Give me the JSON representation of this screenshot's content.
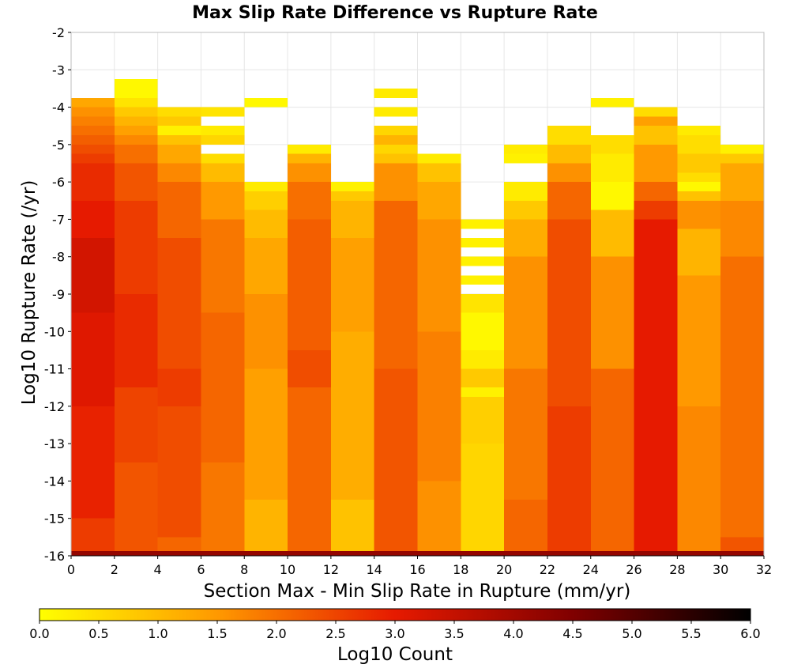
{
  "chart_data": {
    "type": "heatmap",
    "title": "Max Slip Rate Difference vs Rupture Rate",
    "xlabel": "Section Max - Min Slip Rate in Rupture (mm/yr)",
    "ylabel": "Log10 Rupture Rate (/yr)",
    "xlim": [
      0,
      32
    ],
    "ylim": [
      -16,
      -2
    ],
    "x_ticks": [
      "0",
      "2",
      "4",
      "6",
      "8",
      "10",
      "12",
      "14",
      "16",
      "18",
      "20",
      "22",
      "24",
      "26",
      "28",
      "30",
      "32"
    ],
    "y_ticks": [
      "-2",
      "-3",
      "-4",
      "-5",
      "-6",
      "-7",
      "-8",
      "-9",
      "-10",
      "-11",
      "-12",
      "-13",
      "-14",
      "-15",
      "-16"
    ],
    "x_bin_width": 2,
    "y_bin_height": 0.25,
    "grid": true,
    "colorbar": {
      "label": "Log10 Count",
      "min": 0,
      "max": 6,
      "ticks": [
        "0.0",
        "0.5",
        "1.0",
        "1.5",
        "2.0",
        "2.5",
        "3.0",
        "3.5",
        "4.0",
        "4.5",
        "5.0",
        "5.5",
        "6.0"
      ],
      "stops": [
        {
          "value": 0.0,
          "color": "#ffff00"
        },
        {
          "value": 1.5,
          "color": "#ff9900"
        },
        {
          "value": 3.0,
          "color": "#e61a00"
        },
        {
          "value": 4.5,
          "color": "#800000"
        },
        {
          "value": 6.0,
          "color": "#000000"
        }
      ]
    },
    "bottom_row": {
      "y_range": [
        -16,
        -15.875
      ],
      "log10_count": 4.2
    },
    "columns": [
      {
        "x_range": [
          0,
          2
        ],
        "segments": [
          {
            "y_top": -3.75,
            "y_bottom": -4.0,
            "log10_count": 1.3
          },
          {
            "y_top": -4.0,
            "y_bottom": -4.25,
            "log10_count": 1.6
          },
          {
            "y_top": -4.25,
            "y_bottom": -4.5,
            "log10_count": 1.8
          },
          {
            "y_top": -4.5,
            "y_bottom": -4.75,
            "log10_count": 2.0
          },
          {
            "y_top": -4.75,
            "y_bottom": -5.0,
            "log10_count": 2.2
          },
          {
            "y_top": -5.0,
            "y_bottom": -5.25,
            "log10_count": 2.4
          },
          {
            "y_top": -5.25,
            "y_bottom": -5.5,
            "log10_count": 2.6
          },
          {
            "y_top": -5.5,
            "y_bottom": -6.5,
            "log10_count": 2.8
          },
          {
            "y_top": -6.5,
            "y_bottom": -7.5,
            "log10_count": 3.0
          },
          {
            "y_top": -7.5,
            "y_bottom": -9.5,
            "log10_count": 3.3
          },
          {
            "y_top": -9.5,
            "y_bottom": -12.0,
            "log10_count": 3.1
          },
          {
            "y_top": -12.0,
            "y_bottom": -15.0,
            "log10_count": 2.9
          },
          {
            "y_top": -15.0,
            "y_bottom": -15.875,
            "log10_count": 2.6
          }
        ]
      },
      {
        "x_range": [
          2,
          4
        ],
        "segments": [
          {
            "y_top": -3.25,
            "y_bottom": -3.75,
            "log10_count": 0.1
          },
          {
            "y_top": -3.75,
            "y_bottom": -4.0,
            "log10_count": 0.4
          },
          {
            "y_top": -4.0,
            "y_bottom": -4.25,
            "log10_count": 0.8
          },
          {
            "y_top": -4.25,
            "y_bottom": -4.5,
            "log10_count": 1.1
          },
          {
            "y_top": -4.5,
            "y_bottom": -4.75,
            "log10_count": 1.4
          },
          {
            "y_top": -4.75,
            "y_bottom": -5.0,
            "log10_count": 1.7
          },
          {
            "y_top": -5.0,
            "y_bottom": -5.5,
            "log10_count": 2.0
          },
          {
            "y_top": -5.5,
            "y_bottom": -6.5,
            "log10_count": 2.3
          },
          {
            "y_top": -6.5,
            "y_bottom": -9.0,
            "log10_count": 2.6
          },
          {
            "y_top": -9.0,
            "y_bottom": -11.5,
            "log10_count": 2.8
          },
          {
            "y_top": -11.5,
            "y_bottom": -13.5,
            "log10_count": 2.5
          },
          {
            "y_top": -13.5,
            "y_bottom": -15.875,
            "log10_count": 2.3
          }
        ]
      },
      {
        "x_range": [
          4,
          6
        ],
        "segments": [
          {
            "y_top": -4.0,
            "y_bottom": -4.25,
            "log10_count": 0.5
          },
          {
            "y_top": -4.25,
            "y_bottom": -4.5,
            "log10_count": 0.8
          },
          {
            "y_top": -4.5,
            "y_bottom": -4.75,
            "log10_count": 0.2
          },
          {
            "y_top": -4.75,
            "y_bottom": -5.0,
            "log10_count": 0.9
          },
          {
            "y_top": -5.0,
            "y_bottom": -5.5,
            "log10_count": 1.3
          },
          {
            "y_top": -5.5,
            "y_bottom": -6.0,
            "log10_count": 1.7
          },
          {
            "y_top": -6.0,
            "y_bottom": -7.5,
            "log10_count": 2.1
          },
          {
            "y_top": -7.5,
            "y_bottom": -11.0,
            "log10_count": 2.4
          },
          {
            "y_top": -11.0,
            "y_bottom": -12.0,
            "log10_count": 2.6
          },
          {
            "y_top": -12.0,
            "y_bottom": -15.5,
            "log10_count": 2.4
          },
          {
            "y_top": -15.5,
            "y_bottom": -15.875,
            "log10_count": 2.1
          }
        ]
      },
      {
        "x_range": [
          6,
          8
        ],
        "segments": [
          {
            "y_top": -4.0,
            "y_bottom": -4.25,
            "log10_count": 0.4
          },
          {
            "y_top": -4.5,
            "y_bottom": -4.75,
            "log10_count": 0.3
          },
          {
            "y_top": -4.75,
            "y_bottom": -5.0,
            "log10_count": 0.6
          },
          {
            "y_top": -5.25,
            "y_bottom": -5.5,
            "log10_count": 0.5
          },
          {
            "y_top": -5.5,
            "y_bottom": -6.0,
            "log10_count": 1.0
          },
          {
            "y_top": -6.0,
            "y_bottom": -7.0,
            "log10_count": 1.5
          },
          {
            "y_top": -7.0,
            "y_bottom": -9.5,
            "log10_count": 1.9
          },
          {
            "y_top": -9.5,
            "y_bottom": -13.5,
            "log10_count": 2.1
          },
          {
            "y_top": -13.5,
            "y_bottom": -15.875,
            "log10_count": 1.9
          }
        ]
      },
      {
        "x_range": [
          8,
          10
        ],
        "segments": [
          {
            "y_top": -3.75,
            "y_bottom": -4.0,
            "log10_count": 0.1
          },
          {
            "y_top": -6.0,
            "y_bottom": -6.25,
            "log10_count": 0.3
          },
          {
            "y_top": -6.25,
            "y_bottom": -6.75,
            "log10_count": 0.7
          },
          {
            "y_top": -6.75,
            "y_bottom": -7.5,
            "log10_count": 1.0
          },
          {
            "y_top": -7.5,
            "y_bottom": -9.0,
            "log10_count": 1.3
          },
          {
            "y_top": -9.0,
            "y_bottom": -11.0,
            "log10_count": 1.6
          },
          {
            "y_top": -11.0,
            "y_bottom": -14.5,
            "log10_count": 1.4
          },
          {
            "y_top": -14.5,
            "y_bottom": -15.875,
            "log10_count": 1.1
          }
        ]
      },
      {
        "x_range": [
          10,
          12
        ],
        "segments": [
          {
            "y_top": -5.0,
            "y_bottom": -5.25,
            "log10_count": 0.3
          },
          {
            "y_top": -5.25,
            "y_bottom": -5.5,
            "log10_count": 1.1
          },
          {
            "y_top": -5.5,
            "y_bottom": -6.0,
            "log10_count": 1.6
          },
          {
            "y_top": -6.0,
            "y_bottom": -7.0,
            "log10_count": 2.0
          },
          {
            "y_top": -7.0,
            "y_bottom": -10.5,
            "log10_count": 2.2
          },
          {
            "y_top": -10.5,
            "y_bottom": -11.5,
            "log10_count": 2.4
          },
          {
            "y_top": -11.5,
            "y_bottom": -15.875,
            "log10_count": 2.1
          }
        ]
      },
      {
        "x_range": [
          12,
          14
        ],
        "segments": [
          {
            "y_top": -6.0,
            "y_bottom": -6.25,
            "log10_count": 0.2
          },
          {
            "y_top": -6.25,
            "y_bottom": -6.5,
            "log10_count": 0.8
          },
          {
            "y_top": -6.5,
            "y_bottom": -7.5,
            "log10_count": 1.1
          },
          {
            "y_top": -7.5,
            "y_bottom": -10.0,
            "log10_count": 1.4
          },
          {
            "y_top": -10.0,
            "y_bottom": -14.5,
            "log10_count": 1.2
          },
          {
            "y_top": -14.5,
            "y_bottom": -15.875,
            "log10_count": 0.9
          }
        ]
      },
      {
        "x_range": [
          14,
          16
        ],
        "segments": [
          {
            "y_top": -3.5,
            "y_bottom": -3.75,
            "log10_count": 0.3
          },
          {
            "y_top": -4.0,
            "y_bottom": -4.25,
            "log10_count": 0.3
          },
          {
            "y_top": -4.5,
            "y_bottom": -4.75,
            "log10_count": 0.6
          },
          {
            "y_top": -4.75,
            "y_bottom": -5.0,
            "log10_count": 1.1
          },
          {
            "y_top": -5.0,
            "y_bottom": -5.25,
            "log10_count": 0.6
          },
          {
            "y_top": -5.25,
            "y_bottom": -5.5,
            "log10_count": 0.9
          },
          {
            "y_top": -5.5,
            "y_bottom": -6.5,
            "log10_count": 1.6
          },
          {
            "y_top": -6.5,
            "y_bottom": -11.0,
            "log10_count": 2.1
          },
          {
            "y_top": -11.0,
            "y_bottom": -15.875,
            "log10_count": 2.3
          }
        ]
      },
      {
        "x_range": [
          16,
          18
        ],
        "segments": [
          {
            "y_top": -5.25,
            "y_bottom": -5.5,
            "log10_count": 0.3
          },
          {
            "y_top": -5.5,
            "y_bottom": -6.0,
            "log10_count": 0.9
          },
          {
            "y_top": -6.0,
            "y_bottom": -7.0,
            "log10_count": 1.3
          },
          {
            "y_top": -7.0,
            "y_bottom": -10.0,
            "log10_count": 1.6
          },
          {
            "y_top": -10.0,
            "y_bottom": -14.0,
            "log10_count": 1.8
          },
          {
            "y_top": -14.0,
            "y_bottom": -15.875,
            "log10_count": 1.6
          }
        ]
      },
      {
        "x_range": [
          18,
          20
        ],
        "segments": [
          {
            "y_top": -7.0,
            "y_bottom": -7.25,
            "log10_count": 0.2
          },
          {
            "y_top": -7.5,
            "y_bottom": -7.75,
            "log10_count": 0.2
          },
          {
            "y_top": -8.0,
            "y_bottom": -8.25,
            "log10_count": 0.2
          },
          {
            "y_top": -8.5,
            "y_bottom": -8.75,
            "log10_count": 0.2
          },
          {
            "y_top": -9.0,
            "y_bottom": -9.5,
            "log10_count": 0.4
          },
          {
            "y_top": -9.5,
            "y_bottom": -10.5,
            "log10_count": 0.1
          },
          {
            "y_top": -10.5,
            "y_bottom": -11.0,
            "log10_count": 0.3
          },
          {
            "y_top": -11.0,
            "y_bottom": -11.5,
            "log10_count": 0.8
          },
          {
            "y_top": -11.5,
            "y_bottom": -11.75,
            "log10_count": 0.2
          },
          {
            "y_top": -11.75,
            "y_bottom": -13.0,
            "log10_count": 0.7
          },
          {
            "y_top": -13.0,
            "y_bottom": -15.875,
            "log10_count": 0.6
          }
        ]
      },
      {
        "x_range": [
          20,
          22
        ],
        "segments": [
          {
            "y_top": -5.0,
            "y_bottom": -5.25,
            "log10_count": 0.3
          },
          {
            "y_top": -5.25,
            "y_bottom": -5.5,
            "log10_count": 0.2
          },
          {
            "y_top": -6.0,
            "y_bottom": -6.5,
            "log10_count": 0.3
          },
          {
            "y_top": -6.5,
            "y_bottom": -7.0,
            "log10_count": 0.8
          },
          {
            "y_top": -7.0,
            "y_bottom": -8.0,
            "log10_count": 1.2
          },
          {
            "y_top": -8.0,
            "y_bottom": -11.0,
            "log10_count": 1.6
          },
          {
            "y_top": -11.0,
            "y_bottom": -14.5,
            "log10_count": 1.9
          },
          {
            "y_top": -14.5,
            "y_bottom": -15.875,
            "log10_count": 2.1
          }
        ]
      },
      {
        "x_range": [
          22,
          24
        ],
        "segments": [
          {
            "y_top": -4.5,
            "y_bottom": -5.0,
            "log10_count": 0.5
          },
          {
            "y_top": -5.0,
            "y_bottom": -5.5,
            "log10_count": 1.0
          },
          {
            "y_top": -5.5,
            "y_bottom": -6.0,
            "log10_count": 1.6
          },
          {
            "y_top": -6.0,
            "y_bottom": -7.0,
            "log10_count": 2.1
          },
          {
            "y_top": -7.0,
            "y_bottom": -12.0,
            "log10_count": 2.4
          },
          {
            "y_top": -12.0,
            "y_bottom": -15.875,
            "log10_count": 2.6
          }
        ]
      },
      {
        "x_range": [
          24,
          26
        ],
        "segments": [
          {
            "y_top": -3.75,
            "y_bottom": -4.0,
            "log10_count": 0.2
          },
          {
            "y_top": -4.75,
            "y_bottom": -5.25,
            "log10_count": 0.5
          },
          {
            "y_top": -5.25,
            "y_bottom": -6.0,
            "log10_count": 0.3
          },
          {
            "y_top": -6.0,
            "y_bottom": -6.75,
            "log10_count": 0.1
          },
          {
            "y_top": -6.75,
            "y_bottom": -8.0,
            "log10_count": 1.0
          },
          {
            "y_top": -8.0,
            "y_bottom": -11.0,
            "log10_count": 1.6
          },
          {
            "y_top": -11.0,
            "y_bottom": -15.875,
            "log10_count": 2.1
          }
        ]
      },
      {
        "x_range": [
          26,
          28
        ],
        "segments": [
          {
            "y_top": -4.0,
            "y_bottom": -4.25,
            "log10_count": 0.5
          },
          {
            "y_top": -4.25,
            "y_bottom": -4.5,
            "log10_count": 1.4
          },
          {
            "y_top": -4.5,
            "y_bottom": -5.0,
            "log10_count": 0.9
          },
          {
            "y_top": -5.0,
            "y_bottom": -6.0,
            "log10_count": 1.5
          },
          {
            "y_top": -6.0,
            "y_bottom": -6.5,
            "log10_count": 2.1
          },
          {
            "y_top": -6.5,
            "y_bottom": -7.0,
            "log10_count": 2.6
          },
          {
            "y_top": -7.0,
            "y_bottom": -15.875,
            "log10_count": 3.0
          }
        ]
      },
      {
        "x_range": [
          28,
          30
        ],
        "segments": [
          {
            "y_top": -4.5,
            "y_bottom": -4.75,
            "log10_count": 0.3
          },
          {
            "y_top": -4.75,
            "y_bottom": -5.25,
            "log10_count": 0.5
          },
          {
            "y_top": -5.25,
            "y_bottom": -5.75,
            "log10_count": 0.8
          },
          {
            "y_top": -5.75,
            "y_bottom": -6.0,
            "log10_count": 0.5
          },
          {
            "y_top": -6.0,
            "y_bottom": -6.25,
            "log10_count": 0.1
          },
          {
            "y_top": -6.25,
            "y_bottom": -6.5,
            "log10_count": 0.9
          },
          {
            "y_top": -6.5,
            "y_bottom": -7.25,
            "log10_count": 1.6
          },
          {
            "y_top": -7.25,
            "y_bottom": -8.5,
            "log10_count": 1.1
          },
          {
            "y_top": -8.5,
            "y_bottom": -12.0,
            "log10_count": 1.5
          },
          {
            "y_top": -12.0,
            "y_bottom": -15.875,
            "log10_count": 1.7
          }
        ]
      },
      {
        "x_range": [
          30,
          32
        ],
        "segments": [
          {
            "y_top": -5.0,
            "y_bottom": -5.25,
            "log10_count": 0.2
          },
          {
            "y_top": -5.25,
            "y_bottom": -5.5,
            "log10_count": 0.8
          },
          {
            "y_top": -5.5,
            "y_bottom": -6.5,
            "log10_count": 1.3
          },
          {
            "y_top": -6.5,
            "y_bottom": -8.0,
            "log10_count": 1.7
          },
          {
            "y_top": -8.0,
            "y_bottom": -15.5,
            "log10_count": 2.0
          },
          {
            "y_top": -15.5,
            "y_bottom": -15.875,
            "log10_count": 2.3
          }
        ]
      }
    ]
  }
}
